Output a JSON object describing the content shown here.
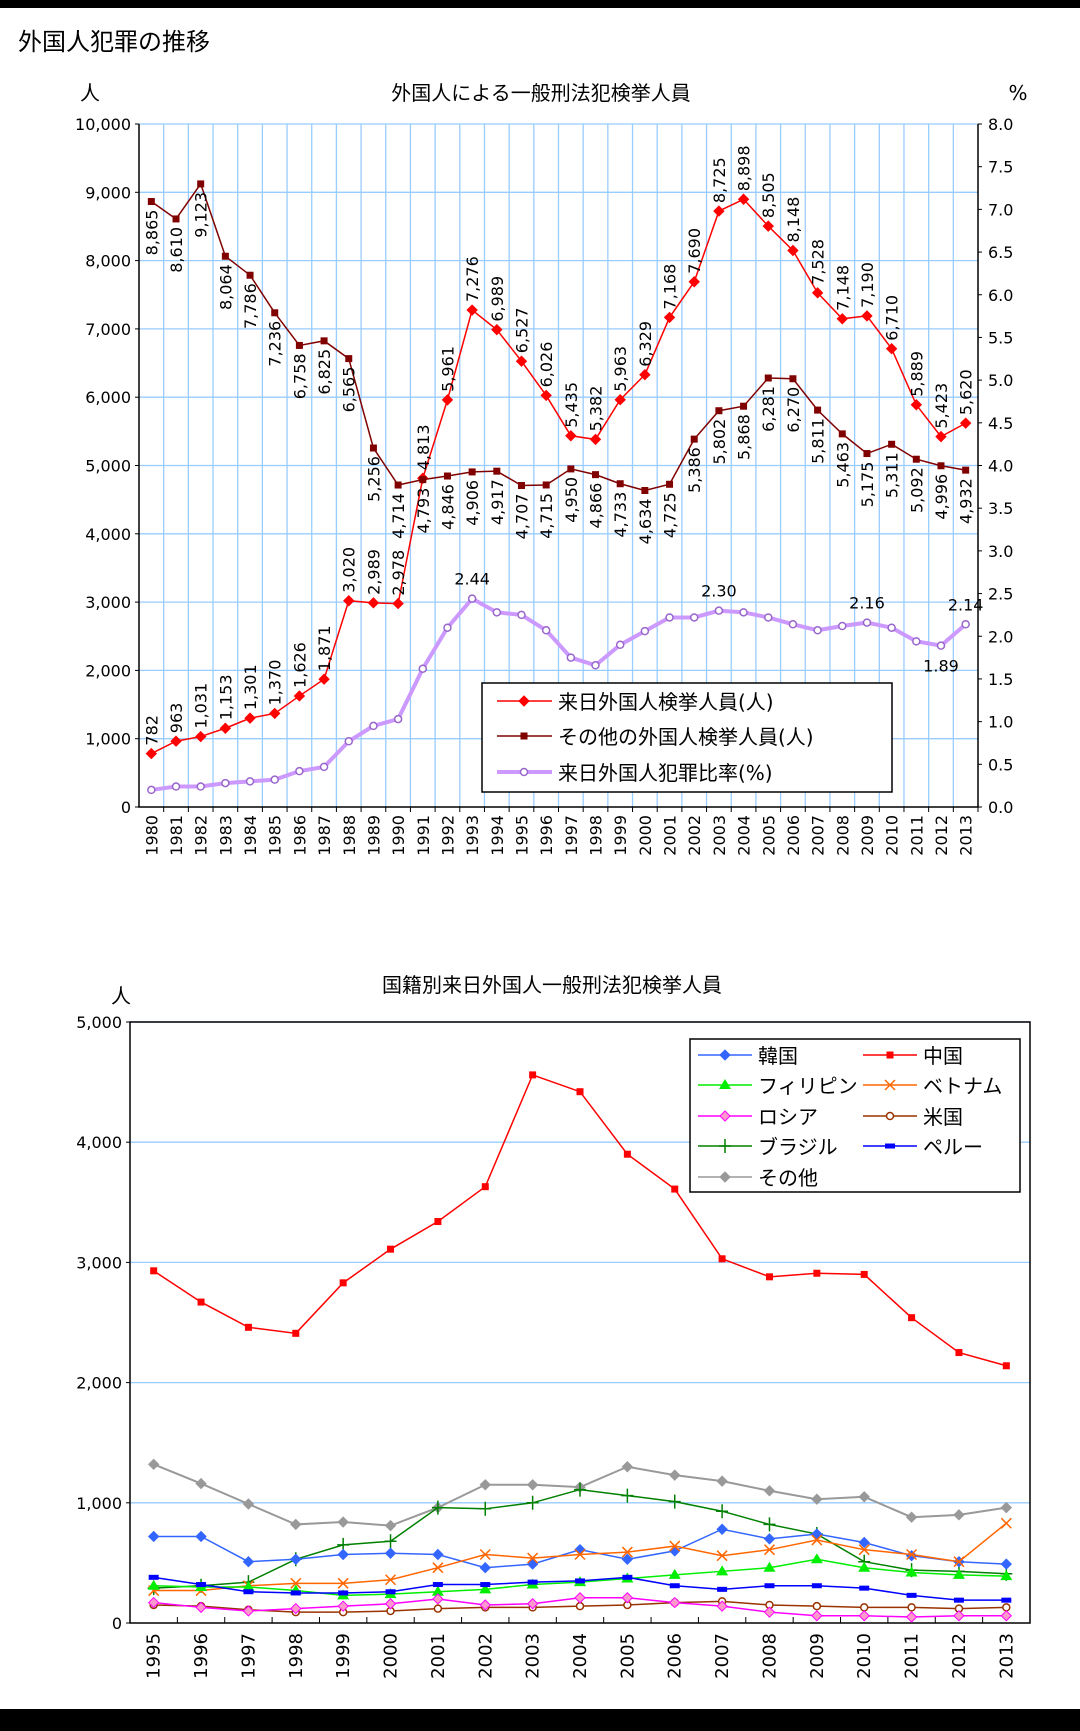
{
  "page_title": "外国人犯罪の推移",
  "chart_data": [
    {
      "type": "line",
      "title": "外国人による一般刑法犯検挙人員",
      "ylabel": "人",
      "y2label": "%",
      "ylim": [
        0,
        10000
      ],
      "y2lim": [
        0,
        8
      ],
      "grid": true,
      "legend_position": "bottom-right",
      "categories": [
        "1980",
        "1981",
        "1982",
        "1983",
        "1984",
        "1985",
        "1986",
        "1987",
        "1988",
        "1989",
        "1990",
        "1991",
        "1992",
        "1993",
        "1994",
        "1995",
        "1996",
        "1997",
        "1998",
        "1999",
        "2000",
        "2001",
        "2002",
        "2003",
        "2004",
        "2005",
        "2006",
        "2007",
        "2008",
        "2009",
        "2010",
        "2011",
        "2012",
        "2013"
      ],
      "series": [
        {
          "name": "来日外国人検挙人員(人)",
          "axis": "left",
          "color": "#ff0000",
          "marker": "diamond",
          "labels": "all",
          "values": [
            782,
            963,
            1031,
            1153,
            1301,
            1370,
            1626,
            1871,
            3020,
            2989,
            2978,
            4813,
            5961,
            7276,
            6989,
            6527,
            6026,
            5435,
            5382,
            5963,
            6329,
            7168,
            7690,
            8725,
            8898,
            8505,
            8148,
            7528,
            7148,
            7190,
            6710,
            5889,
            5423,
            5620
          ]
        },
        {
          "name": "その他の外国人検挙人員(人)",
          "axis": "left",
          "color": "#800000",
          "marker": "square",
          "labels": "all",
          "values": [
            8865,
            8610,
            9123,
            8064,
            7786,
            7236,
            6758,
            6825,
            6565,
            5256,
            4714,
            4793,
            4846,
            4906,
            4917,
            4707,
            4715,
            4950,
            4866,
            4733,
            4634,
            4725,
            5386,
            5802,
            5868,
            6281,
            6270,
            5811,
            5463,
            5175,
            5311,
            5092,
            4996,
            4932
          ]
        },
        {
          "name": "来日外国人犯罪比率(%)",
          "axis": "right",
          "color": "#cc99ff",
          "marker": "circle",
          "values": [
            0.2,
            0.24,
            0.24,
            0.28,
            0.3,
            0.32,
            0.42,
            0.47,
            0.77,
            0.95,
            1.03,
            1.62,
            2.1,
            2.44,
            2.28,
            2.25,
            2.07,
            1.75,
            1.66,
            1.9,
            2.06,
            2.22,
            2.22,
            2.3,
            2.28,
            2.22,
            2.14,
            2.07,
            2.12,
            2.16,
            2.1,
            1.94,
            1.89,
            2.14
          ],
          "data_labels": [
            {
              "category": "1993",
              "text": "2.44"
            },
            {
              "category": "2003",
              "text": "2.30"
            },
            {
              "category": "2009",
              "text": "2.16"
            },
            {
              "category": "2012",
              "text": "1.89"
            },
            {
              "category": "2013",
              "text": "2.14"
            }
          ]
        }
      ]
    },
    {
      "type": "line",
      "title": "国籍別来日外国人一般刑法犯検挙人員",
      "ylabel": "人",
      "ylim": [
        0,
        5000
      ],
      "grid": true,
      "legend_position": "top-right",
      "categories": [
        "1995",
        "1996",
        "1997",
        "1998",
        "1999",
        "2000",
        "2001",
        "2002",
        "2003",
        "2004",
        "2005",
        "2006",
        "2007",
        "2008",
        "2009",
        "2010",
        "2011",
        "2012",
        "2013"
      ],
      "series": [
        {
          "name": "韓国",
          "color": "#3366ff",
          "marker": "diamond",
          "values": [
            720,
            720,
            510,
            530,
            570,
            580,
            570,
            460,
            490,
            610,
            530,
            600,
            780,
            700,
            740,
            670,
            560,
            510,
            490
          ]
        },
        {
          "name": "中国",
          "color": "#ff0000",
          "marker": "square",
          "values": [
            2930,
            2670,
            2460,
            2410,
            2830,
            3110,
            3340,
            3630,
            4560,
            4420,
            3900,
            3610,
            3030,
            2880,
            2910,
            2900,
            2540,
            2250,
            2140
          ]
        },
        {
          "name": "フィリピン",
          "color": "#00ee00",
          "marker": "triangle",
          "values": [
            310,
            300,
            300,
            270,
            230,
            240,
            260,
            280,
            320,
            340,
            370,
            400,
            430,
            460,
            530,
            460,
            420,
            400,
            390
          ]
        },
        {
          "name": "ベトナム",
          "color": "#ff6600",
          "marker": "x",
          "values": [
            270,
            270,
            310,
            330,
            330,
            360,
            460,
            570,
            540,
            570,
            590,
            640,
            560,
            610,
            690,
            610,
            570,
            510,
            830
          ]
        },
        {
          "name": "ロシア",
          "color": "#ff00ff",
          "marker": "diamond-light",
          "values": [
            170,
            130,
            100,
            120,
            140,
            160,
            200,
            150,
            160,
            210,
            210,
            170,
            140,
            90,
            60,
            60,
            50,
            60,
            60
          ]
        },
        {
          "name": "米国",
          "color": "#993300",
          "marker": "circle",
          "values": [
            150,
            140,
            110,
            90,
            90,
            100,
            120,
            130,
            130,
            140,
            150,
            170,
            180,
            150,
            140,
            130,
            130,
            120,
            130
          ]
        },
        {
          "name": "ブラジル",
          "color": "#008000",
          "marker": "plus",
          "values": [
            290,
            310,
            340,
            530,
            650,
            680,
            960,
            950,
            1000,
            1110,
            1060,
            1010,
            930,
            820,
            740,
            510,
            440,
            430,
            410
          ]
        },
        {
          "name": "ペルー",
          "color": "#0000ff",
          "marker": "dash",
          "values": [
            380,
            320,
            260,
            250,
            250,
            260,
            320,
            320,
            340,
            350,
            380,
            310,
            280,
            310,
            310,
            290,
            230,
            190,
            190
          ]
        },
        {
          "name": "その他",
          "color": "#999999",
          "marker": "diamond",
          "values": [
            1320,
            1160,
            990,
            820,
            840,
            810,
            960,
            1150,
            1150,
            1130,
            1300,
            1230,
            1180,
            1100,
            1030,
            1050,
            880,
            900,
            960
          ]
        }
      ]
    }
  ]
}
